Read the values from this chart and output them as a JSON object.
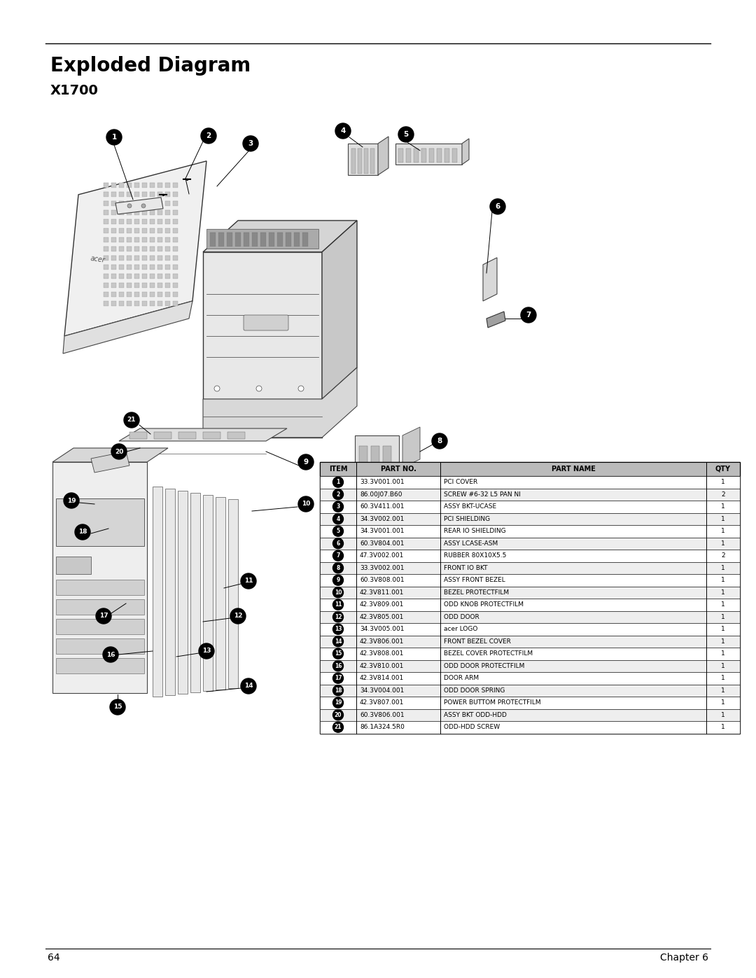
{
  "title": "Exploded Diagram",
  "subtitle": "X1700",
  "page_number": "64",
  "chapter": "Chapter 6",
  "bg_color": "#ffffff",
  "title_fontsize": 20,
  "subtitle_fontsize": 14,
  "table_data": [
    {
      "item": "1",
      "part_no": "33.3V001.001",
      "part_name": "PCI COVER",
      "qty": "1"
    },
    {
      "item": "2",
      "part_no": "86.00J07.B60",
      "part_name": "SCREW #6-32 L5 PAN NI",
      "qty": "2"
    },
    {
      "item": "3",
      "part_no": "60.3V411.001",
      "part_name": "ASSY BKT-UCASE",
      "qty": "1"
    },
    {
      "item": "4",
      "part_no": "34.3V002.001",
      "part_name": "PCI SHIELDING",
      "qty": "1"
    },
    {
      "item": "5",
      "part_no": "34.3V001.001",
      "part_name": "REAR IO SHIELDING",
      "qty": "1"
    },
    {
      "item": "6",
      "part_no": "60.3V804.001",
      "part_name": "ASSY LCASE-ASM",
      "qty": "1"
    },
    {
      "item": "7",
      "part_no": "47.3V002.001",
      "part_name": "RUBBER 80X10X5.5",
      "qty": "2"
    },
    {
      "item": "8",
      "part_no": "33.3V002.001",
      "part_name": "FRONT IO BKT",
      "qty": "1"
    },
    {
      "item": "9",
      "part_no": "60.3V808.001",
      "part_name": "ASSY FRONT BEZEL",
      "qty": "1"
    },
    {
      "item": "10",
      "part_no": "42.3V811.001",
      "part_name": "BEZEL PROTECTFILM",
      "qty": "1"
    },
    {
      "item": "11",
      "part_no": "42.3V809.001",
      "part_name": "ODD KNOB PROTECTFILM",
      "qty": "1"
    },
    {
      "item": "12",
      "part_no": "42.3V805.001",
      "part_name": "ODD DOOR",
      "qty": "1"
    },
    {
      "item": "13",
      "part_no": "34.3V005.001",
      "part_name": "acer LOGO",
      "qty": "1"
    },
    {
      "item": "14",
      "part_no": "42.3V806.001",
      "part_name": "FRONT BEZEL COVER",
      "qty": "1"
    },
    {
      "item": "15",
      "part_no": "42.3V808.001",
      "part_name": "BEZEL COVER PROTECTFILM",
      "qty": "1"
    },
    {
      "item": "16",
      "part_no": "42.3V810.001",
      "part_name": "ODD DOOR PROTECTFILM",
      "qty": "1"
    },
    {
      "item": "17",
      "part_no": "42.3V814.001",
      "part_name": "DOOR ARM",
      "qty": "1"
    },
    {
      "item": "18",
      "part_no": "34.3V004.001",
      "part_name": "ODD DOOR SPRING",
      "qty": "1"
    },
    {
      "item": "19",
      "part_no": "42.3V807.001",
      "part_name": "POWER BUTTOM PROTECTFILM",
      "qty": "1"
    },
    {
      "item": "20",
      "part_no": "60.3V806.001",
      "part_name": "ASSY BKT ODD-HDD",
      "qty": "1"
    },
    {
      "item": "21",
      "part_no": "86.1A324.5R0",
      "part_name": "ODD-HDD SCREW",
      "qty": "1"
    }
  ],
  "col_headers": [
    "ITEM",
    "PART NO.",
    "PART NAME",
    "QTY"
  ],
  "header_bg": "#bbbbbb",
  "row_bg_alt": "#eeeeee",
  "row_bg_norm": "#ffffff"
}
